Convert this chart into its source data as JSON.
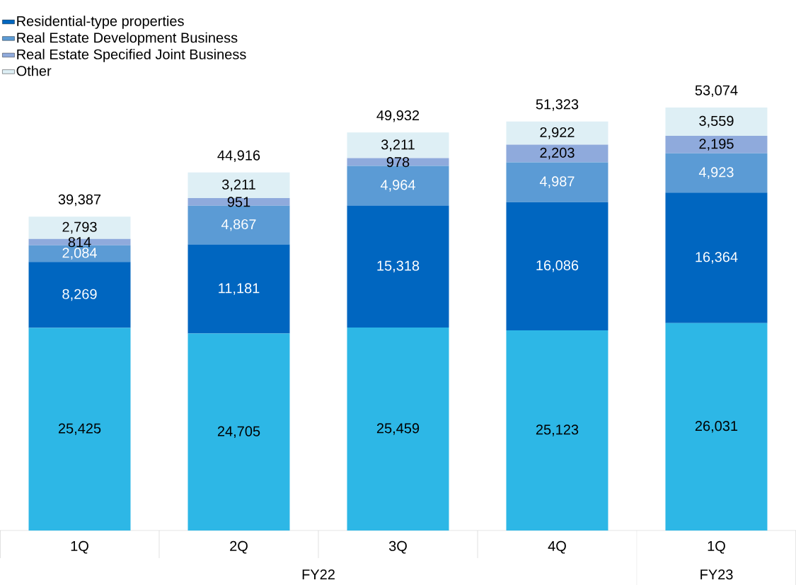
{
  "chart_data": {
    "type": "bar",
    "stacked": true,
    "legend": "top left",
    "categories": [
      "1Q",
      "2Q",
      "3Q",
      "4Q",
      "1Q"
    ],
    "series": [
      {
        "color": "#2db7e6",
        "values": [
          25425,
          24705,
          25459,
          25123,
          26031
        ],
        "value_labels": [
          "25,425",
          "24,705",
          "25,459",
          "25,123",
          "26,031"
        ]
      },
      {
        "name": "Residential-type properties",
        "color": "#0066c0",
        "values": [
          8269,
          11181,
          15318,
          16086,
          16364
        ],
        "value_labels": [
          "8,269",
          "11,181",
          "15,318",
          "16,086",
          "16,364"
        ]
      },
      {
        "name": "Real Estate Development Business",
        "color": "#5b9bd5",
        "values": [
          2084,
          4867,
          4964,
          4987,
          4923
        ],
        "value_labels": [
          "2,084",
          "4,867",
          "4,964",
          "4,987",
          "4,923"
        ]
      },
      {
        "name": "Real Estate Specified Joint Business",
        "color": "#8faadc",
        "values": [
          814,
          951,
          978,
          2203,
          2195
        ],
        "value_labels": [
          "814",
          "951",
          "978",
          "2,203",
          "2,195"
        ]
      },
      {
        "name": "Other",
        "color": "#deeff5",
        "values": [
          2793,
          3211,
          3211,
          2922,
          3559
        ],
        "value_labels": [
          "2,793",
          "3,211",
          "3,211",
          "2,922",
          "3,559"
        ]
      }
    ],
    "totals": [
      "39,387",
      "44,916",
      "49,932",
      "51,323",
      "53,074"
    ],
    "annotations": [
      "FY22",
      "FY23"
    ]
  }
}
